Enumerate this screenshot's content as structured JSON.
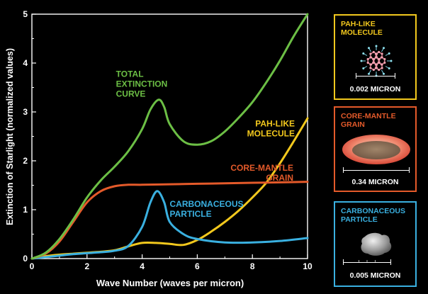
{
  "chart_data": {
    "type": "line",
    "xlabel": "Wave Number (waves per micron)",
    "ylabel": "Extinction of Starlight (normalized values)",
    "xlim": [
      0,
      10
    ],
    "ylim": [
      0,
      5
    ],
    "xticks": [
      0,
      2,
      4,
      6,
      8,
      10
    ],
    "yticks": [
      0,
      1,
      2,
      3,
      4,
      5
    ],
    "grid": false,
    "series": [
      {
        "name": "TOTAL EXTINCTION CURVE",
        "color": "#6cbf45",
        "x": [
          0,
          0.5,
          1,
          1.5,
          2,
          2.5,
          3,
          3.5,
          4,
          4.3,
          4.6,
          4.8,
          5,
          5.5,
          6,
          6.5,
          7,
          7.5,
          8,
          8.5,
          9,
          9.5,
          10
        ],
        "y": [
          0,
          0.12,
          0.4,
          0.8,
          1.25,
          1.6,
          1.88,
          2.2,
          2.65,
          3.05,
          3.25,
          3.1,
          2.75,
          2.4,
          2.33,
          2.4,
          2.6,
          2.88,
          3.2,
          3.6,
          4.05,
          4.55,
          5.0
        ]
      },
      {
        "name": "CORE-MANTLE GRAIN",
        "color": "#e45a2a",
        "x": [
          0,
          0.5,
          1,
          1.5,
          2,
          2.5,
          3,
          3.5,
          4,
          5,
          6,
          7,
          8,
          9,
          10
        ],
        "y": [
          0,
          0.1,
          0.35,
          0.75,
          1.15,
          1.38,
          1.48,
          1.51,
          1.51,
          1.52,
          1.53,
          1.54,
          1.55,
          1.56,
          1.57
        ]
      },
      {
        "name": "CARBONACEOUS PARTICLE",
        "color": "#3ab0e0",
        "x": [
          0,
          0.5,
          1,
          1.5,
          2,
          2.5,
          3,
          3.5,
          4,
          4.3,
          4.55,
          4.8,
          5,
          5.5,
          6,
          7,
          8,
          9,
          10
        ],
        "y": [
          0,
          0.03,
          0.06,
          0.09,
          0.11,
          0.13,
          0.16,
          0.26,
          0.65,
          1.15,
          1.38,
          1.15,
          0.75,
          0.5,
          0.4,
          0.33,
          0.33,
          0.36,
          0.42
        ]
      },
      {
        "name": "PAH-LIKE MOLECULE",
        "color": "#f2c81d",
        "x": [
          0,
          0.5,
          1,
          1.5,
          2,
          2.5,
          3,
          3.5,
          4,
          4.5,
          5,
          5.5,
          6,
          6.5,
          7,
          7.5,
          8,
          8.5,
          9,
          9.5,
          10
        ],
        "y": [
          0,
          0.05,
          0.08,
          0.1,
          0.12,
          0.14,
          0.17,
          0.25,
          0.32,
          0.32,
          0.3,
          0.28,
          0.38,
          0.55,
          0.75,
          0.98,
          1.25,
          1.55,
          1.95,
          2.4,
          2.87
        ]
      }
    ],
    "annotations": [
      {
        "text": "TOTAL EXTINCTION CURVE",
        "lines": [
          "TOTAL",
          "EXTINCTION",
          "CURVE"
        ],
        "color": "#6cbf45",
        "x": 3.05,
        "y": 3.72
      },
      {
        "text": "PAH-LIKE MOLECULE",
        "lines": [
          "PAH-LIKE",
          "MOLECULE"
        ],
        "color": "#f2c81d",
        "x": 7.55,
        "y": 2.7
      },
      {
        "text": "CORE-MANTLE GRAIN",
        "lines": [
          "CORE-MANTLE",
          "GRAIN"
        ],
        "color": "#e45a2a",
        "x": 6.3,
        "y": 1.8
      },
      {
        "text": "CARBONACEOUS PARTICLE",
        "lines": [
          "CARBONACEOUS",
          "PARTICLE"
        ],
        "color": "#3ab0e0",
        "x": 5.0,
        "y": 1.06
      }
    ]
  },
  "panels": [
    {
      "title": "PAH-LIKE\nMOLECULE",
      "color": "#f2c81d",
      "scale": "0.002 MICRON",
      "icon": "pah-molecule-icon"
    },
    {
      "title": "CORE-MANTLE\nGRAIN",
      "color": "#e45a2a",
      "scale": "0.34 MICRON",
      "icon": "core-mantle-grain-icon"
    },
    {
      "title": "CARBONACEOUS\nPARTICLE",
      "color": "#3ab0e0",
      "scale": "0.005 MICRON",
      "icon": "carbonaceous-particle-icon"
    }
  ]
}
